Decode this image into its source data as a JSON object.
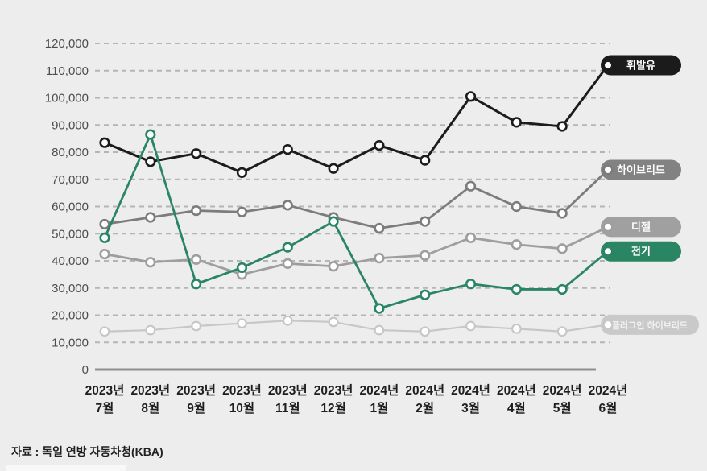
{
  "chart_data": {
    "type": "line",
    "title": "",
    "x_axis_unit_labels": {
      "year_suffix": "년",
      "month_suffix": "월"
    },
    "categories": [
      [
        "2023년",
        "7월"
      ],
      [
        "2023년",
        "8월"
      ],
      [
        "2023년",
        "9월"
      ],
      [
        "2023년",
        "10월"
      ],
      [
        "2023년",
        "11월"
      ],
      [
        "2023년",
        "12월"
      ],
      [
        "2024년",
        "1월"
      ],
      [
        "2024년",
        "2월"
      ],
      [
        "2024년",
        "3월"
      ],
      [
        "2024년",
        "4월"
      ],
      [
        "2024년",
        "5월"
      ],
      [
        "2024년",
        "6월"
      ]
    ],
    "series": [
      {
        "key": "gasoline",
        "label": "휘발유",
        "z": 4,
        "color": "#1c1c1c",
        "badge_bg": "#1b1b1b",
        "badge_text_color": "#ffffff",
        "values": [
          83500,
          76500,
          79500,
          72500,
          81000,
          74000,
          82500,
          77000,
          100500,
          91000,
          89500,
          112000
        ]
      },
      {
        "key": "hybrid",
        "label": "하이브리드",
        "z": 3,
        "color": "#7c7c7c",
        "badge_bg": "#828282",
        "badge_text_color": "#ffffff",
        "values": [
          53500,
          56000,
          58500,
          58000,
          60500,
          56000,
          52000,
          54500,
          67500,
          60000,
          57500,
          73500
        ]
      },
      {
        "key": "diesel",
        "label": "디젤",
        "z": 2,
        "color": "#9e9e9e",
        "badge_bg": "#a0a0a0",
        "badge_text_color": "#ffffff",
        "values": [
          42500,
          39500,
          40500,
          35000,
          39000,
          38000,
          41000,
          42000,
          48500,
          46000,
          44500,
          52500
        ]
      },
      {
        "key": "electric",
        "label": "전기",
        "z": 5,
        "color": "#2a8565",
        "badge_bg": "#2a8565",
        "badge_text_color": "#ffffff",
        "values": [
          48500,
          86500,
          31500,
          37500,
          45000,
          54500,
          22500,
          27500,
          31500,
          29500,
          29500,
          43500
        ]
      },
      {
        "key": "plugin-hybrid",
        "label": "플러그인 하이브리드",
        "z": 1,
        "color": "#c7c7c7",
        "badge_bg": "#c9c9c9",
        "badge_text_color": "#f2f2f2",
        "values": [
          14000,
          14500,
          16000,
          17000,
          18000,
          17500,
          14500,
          14000,
          16000,
          15000,
          14000,
          16500
        ]
      }
    ],
    "ylim": [
      0,
      120000
    ],
    "y_tick_step": 10000,
    "y_tick_labels": [
      "0",
      "10,000",
      "20,000",
      "30,000",
      "40,000",
      "50,000",
      "60,000",
      "70,000",
      "80,000",
      "90,000",
      "100,000",
      "110,000",
      "120,000"
    ],
    "grid": "horizontal-dashed",
    "legend_position": "right-pill-badges"
  },
  "style": {
    "background": "#ededed",
    "gridline_color": "#b5b5b5",
    "axis_line_color": "#8f8f8f",
    "y_label_color": "#4d4d4d",
    "x_label_color": "#1f1f1f",
    "marker_fill": "#ffffff"
  },
  "source": {
    "text": "자료 : 독일 연방 자동차청(KBA)"
  }
}
